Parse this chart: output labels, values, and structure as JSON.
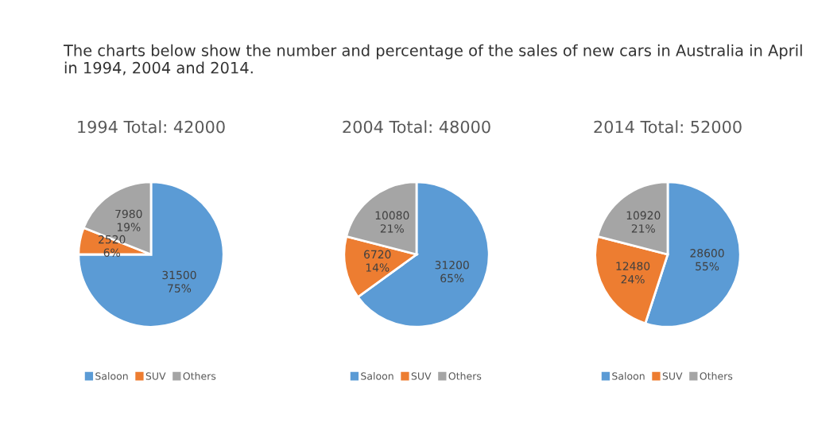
{
  "chart_data": [
    {
      "type": "pie",
      "title": "1994 Total: 42000",
      "annotations": [
        "The charts below show the number and percentage of the sales of new cars in Australia in April in 1994, 2004 and 2014."
      ],
      "categories": [
        "Saloon",
        "SUV",
        "Others"
      ],
      "values": [
        31500,
        2520,
        7980
      ],
      "value_labels": [
        "31500\n75%",
        "2520\n6%",
        "7980\n19%"
      ],
      "colors": [
        "#5b9bd5",
        "#ed7d31",
        "#a5a5a5"
      ],
      "legend": "bottom"
    },
    {
      "type": "pie",
      "title": "2004 Total: 48000",
      "categories": [
        "Saloon",
        "SUV",
        "Others"
      ],
      "values": [
        31200,
        6720,
        10080
      ],
      "value_labels": [
        "31200\n65%",
        "6720\n14%",
        "10080\n21%"
      ],
      "colors": [
        "#5b9bd5",
        "#ed7d31",
        "#a5a5a5"
      ],
      "legend": "bottom"
    },
    {
      "type": "pie",
      "title": "2014 Total: 52000",
      "categories": [
        "Saloon",
        "SUV",
        "Others"
      ],
      "values": [
        28600,
        12480,
        10920
      ],
      "value_labels": [
        "28600\n55%",
        "12480\n24%",
        "10920\n21%"
      ],
      "colors": [
        "#5b9bd5",
        "#ed7d31",
        "#a5a5a5"
      ],
      "legend": "bottom"
    }
  ]
}
